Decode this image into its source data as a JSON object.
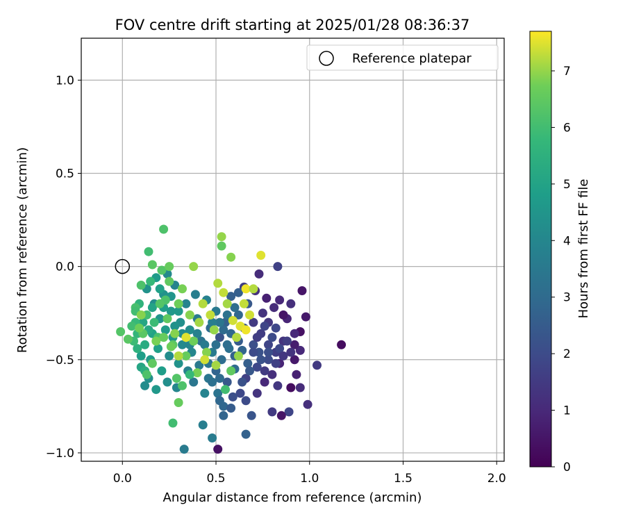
{
  "chart_data": {
    "type": "scatter",
    "title": "FOV centre drift starting at 2025/01/28 08:36:37",
    "xlabel": "Angular distance from reference (arcmin)",
    "ylabel": "Rotation from reference (arcmin)",
    "xlim": [
      -0.22,
      2.04
    ],
    "ylim": [
      -1.045,
      1.225
    ],
    "xticks": [
      {
        "value": 0.0,
        "label": "0.0"
      },
      {
        "value": 0.5,
        "label": "0.5"
      },
      {
        "value": 1.0,
        "label": "1.0"
      },
      {
        "value": 1.5,
        "label": "1.5"
      },
      {
        "value": 2.0,
        "label": "2.0"
      }
    ],
    "yticks": [
      {
        "value": -1.0,
        "label": "−1.0"
      },
      {
        "value": -0.5,
        "label": "−0.5"
      },
      {
        "value": 0.0,
        "label": "0.0"
      },
      {
        "value": 0.5,
        "label": "0.5"
      },
      {
        "value": 1.0,
        "label": "1.0"
      }
    ],
    "grid": true,
    "legend": {
      "position": "top-right",
      "entries": [
        "Reference platepar"
      ]
    },
    "colorbar": {
      "label": "Hours from first FF file",
      "colormap": "viridis",
      "range": [
        0,
        7.7
      ],
      "ticks": [
        {
          "value": 0,
          "label": "0"
        },
        {
          "value": 1,
          "label": "1"
        },
        {
          "value": 2,
          "label": "2"
        },
        {
          "value": 3,
          "label": "3"
        },
        {
          "value": 4,
          "label": "4"
        },
        {
          "value": 5,
          "label": "5"
        },
        {
          "value": 6,
          "label": "6"
        },
        {
          "value": 7,
          "label": "7"
        }
      ]
    },
    "reference_point": {
      "x": 0.0,
      "y": 0.0,
      "label": "Reference platepar"
    },
    "points": [
      [
        1.17,
        -0.42,
        0.3
      ],
      [
        1.04,
        -0.53,
        1.5
      ],
      [
        0.99,
        -0.74,
        1.2
      ],
      [
        0.96,
        -0.13,
        0.5
      ],
      [
        0.98,
        -0.27,
        0.6
      ],
      [
        0.95,
        -0.35,
        0.4
      ],
      [
        0.93,
        -0.58,
        0.8
      ],
      [
        0.95,
        -0.45,
        1.0
      ],
      [
        0.95,
        -0.65,
        1.1
      ],
      [
        0.88,
        -0.28,
        0.9
      ],
      [
        0.9,
        -0.2,
        1.2
      ],
      [
        0.92,
        -0.42,
        0.7
      ],
      [
        0.92,
        -0.5,
        0.6
      ],
      [
        0.9,
        -0.65,
        0.3
      ],
      [
        0.89,
        -0.78,
        1.8
      ],
      [
        0.86,
        -0.26,
        0.5
      ],
      [
        0.86,
        -0.4,
        1.3
      ],
      [
        0.84,
        -0.52,
        0.9
      ],
      [
        0.84,
        -0.18,
        1.0
      ],
      [
        0.83,
        0.0,
        1.7
      ],
      [
        0.83,
        -0.64,
        1.4
      ],
      [
        0.85,
        -0.8,
        0.5
      ],
      [
        0.82,
        -0.33,
        1.9
      ],
      [
        0.82,
        -0.46,
        1.6
      ],
      [
        0.81,
        -0.22,
        1.1
      ],
      [
        0.8,
        -0.58,
        1.2
      ],
      [
        0.8,
        -0.78,
        1.5
      ],
      [
        0.78,
        -0.3,
        1.4
      ],
      [
        0.78,
        -0.42,
        1.8
      ],
      [
        0.78,
        -0.5,
        2.0
      ],
      [
        0.77,
        -0.17,
        0.8
      ],
      [
        0.76,
        -0.62,
        1.0
      ],
      [
        0.75,
        -0.25,
        1.3
      ],
      [
        0.74,
        -0.36,
        1.6
      ],
      [
        0.73,
        -0.46,
        2.2
      ],
      [
        0.72,
        -0.68,
        1.3
      ],
      [
        0.73,
        -0.04,
        1.1
      ],
      [
        0.71,
        -0.13,
        1.2
      ],
      [
        0.72,
        -0.54,
        1.9
      ],
      [
        0.7,
        -0.3,
        1.5
      ],
      [
        0.7,
        -0.42,
        2.1
      ],
      [
        0.69,
        -0.8,
        2.3
      ],
      [
        0.67,
        -0.2,
        2.4
      ],
      [
        0.67,
        -0.52,
        2.6
      ],
      [
        0.66,
        -0.6,
        1.7
      ],
      [
        0.65,
        -0.11,
        1.6
      ],
      [
        0.65,
        -0.33,
        2.3
      ],
      [
        0.64,
        -0.45,
        2.8
      ],
      [
        0.63,
        -0.68,
        1.9
      ],
      [
        0.66,
        -0.9,
        2.7
      ],
      [
        0.62,
        -0.26,
        2.9
      ],
      [
        0.61,
        -0.38,
        2.5
      ],
      [
        0.6,
        -0.55,
        3.0
      ],
      [
        0.59,
        -0.7,
        2.1
      ],
      [
        0.58,
        -0.16,
        2.6
      ],
      [
        0.57,
        -0.44,
        3.2
      ],
      [
        0.56,
        -0.62,
        2.4
      ],
      [
        0.55,
        -0.3,
        2.7
      ],
      [
        0.54,
        -0.75,
        2.9
      ],
      [
        0.53,
        -0.5,
        3.1
      ],
      [
        0.52,
        -0.38,
        2.2
      ],
      [
        0.51,
        -0.68,
        3.3
      ],
      [
        0.5,
        -0.24,
        3.5
      ],
      [
        0.5,
        -0.56,
        2.8
      ],
      [
        0.48,
        -0.46,
        3.6
      ],
      [
        0.47,
        -0.33,
        3.0
      ],
      [
        0.46,
        -0.6,
        3.4
      ],
      [
        0.45,
        -0.18,
        3.8
      ],
      [
        0.44,
        -0.68,
        3.9
      ],
      [
        0.43,
        -0.85,
        3.7
      ],
      [
        0.42,
        -0.4,
        3.3
      ],
      [
        0.41,
        -0.53,
        3.5
      ],
      [
        0.4,
        -0.28,
        3.6
      ],
      [
        0.39,
        -0.15,
        3.7
      ],
      [
        0.38,
        -0.62,
        3.4
      ],
      [
        0.37,
        -0.46,
        4.0
      ],
      [
        0.36,
        -0.34,
        4.2
      ],
      [
        0.35,
        -0.56,
        3.8
      ],
      [
        0.34,
        -0.2,
        3.9
      ],
      [
        0.33,
        -0.98,
        3.6
      ],
      [
        0.32,
        -0.42,
        4.1
      ],
      [
        0.31,
        -0.3,
        4.3
      ],
      [
        0.3,
        -0.52,
        4.4
      ],
      [
        0.29,
        -0.65,
        4.0
      ],
      [
        0.28,
        -0.1,
        3.9
      ],
      [
        0.27,
        -0.38,
        4.5
      ],
      [
        0.26,
        -0.24,
        4.6
      ],
      [
        0.25,
        -0.48,
        4.2
      ],
      [
        0.24,
        -0.04,
        4.1
      ],
      [
        0.24,
        -0.62,
        4.3
      ],
      [
        0.23,
        -0.34,
        4.7
      ],
      [
        0.22,
        -0.15,
        4.4
      ],
      [
        0.21,
        -0.56,
        4.8
      ],
      [
        0.2,
        -0.28,
        4.5
      ],
      [
        0.19,
        -0.44,
        4.9
      ],
      [
        0.18,
        -0.66,
        4.6
      ],
      [
        0.17,
        -0.2,
        4.2
      ],
      [
        0.16,
        -0.36,
        5.0
      ],
      [
        0.15,
        -0.5,
        4.7
      ],
      [
        0.14,
        -0.6,
        4.3
      ],
      [
        0.13,
        -0.12,
        4.4
      ],
      [
        0.12,
        -0.64,
        4.2
      ],
      [
        0.11,
        -0.3,
        5.1
      ],
      [
        0.1,
        -0.48,
        4.8
      ],
      [
        0.76,
        -0.32,
        1.8
      ],
      [
        0.8,
        -0.38,
        2.0
      ],
      [
        0.84,
        -0.44,
        1.9
      ],
      [
        0.88,
        -0.4,
        1.6
      ],
      [
        0.86,
        -0.48,
        1.4
      ],
      [
        0.82,
        -0.52,
        1.7
      ],
      [
        0.78,
        -0.46,
        2.1
      ],
      [
        0.74,
        -0.5,
        2.2
      ],
      [
        0.7,
        -0.46,
        2.0
      ],
      [
        0.72,
        -0.38,
        1.6
      ],
      [
        0.9,
        -0.46,
        1.3
      ],
      [
        0.92,
        -0.36,
        1.0
      ],
      [
        0.76,
        -0.56,
        1.5
      ],
      [
        0.68,
        -0.56,
        2.4
      ],
      [
        0.6,
        -0.48,
        2.7
      ],
      [
        0.62,
        -0.4,
        2.5
      ],
      [
        0.58,
        -0.36,
        2.9
      ],
      [
        0.56,
        -0.42,
        3.1
      ],
      [
        0.64,
        -0.62,
        2.2
      ],
      [
        0.66,
        -0.72,
        2.0
      ],
      [
        0.58,
        -0.76,
        2.5
      ],
      [
        0.52,
        -0.6,
        3.0
      ],
      [
        0.48,
        -0.62,
        3.2
      ],
      [
        0.52,
        -0.72,
        2.9
      ],
      [
        0.48,
        -0.92,
        3.6
      ],
      [
        0.54,
        -0.8,
        2.8
      ],
      [
        0.46,
        -0.52,
        3.4
      ],
      [
        0.44,
        -0.42,
        3.6
      ],
      [
        0.5,
        -0.42,
        3.2
      ],
      [
        0.54,
        -0.34,
        3.0
      ],
      [
        0.56,
        -0.26,
        3.3
      ],
      [
        0.6,
        -0.22,
        3.1
      ],
      [
        0.62,
        -0.14,
        2.6
      ],
      [
        0.52,
        -0.3,
        3.4
      ],
      [
        0.51,
        -0.98,
        0.4
      ],
      [
        0.48,
        -0.3,
        3.7
      ],
      [
        0.4,
        -0.36,
        3.8
      ],
      [
        0.36,
        -0.42,
        4.0
      ],
      [
        0.32,
        -0.36,
        4.2
      ],
      [
        0.28,
        -0.32,
        4.4
      ],
      [
        0.3,
        -0.24,
        4.6
      ],
      [
        0.26,
        -0.16,
        4.5
      ],
      [
        0.22,
        -0.22,
        4.8
      ],
      [
        0.2,
        -0.12,
        4.9
      ],
      [
        0.18,
        -0.06,
        4.7
      ],
      [
        0.16,
        -0.22,
        5.0
      ],
      [
        0.14,
        -0.34,
        5.2
      ],
      [
        0.12,
        -0.42,
        5.3
      ],
      [
        0.1,
        -0.54,
        5.1
      ],
      [
        0.12,
        -0.56,
        5.4
      ],
      [
        0.08,
        -0.44,
        5.5
      ],
      [
        0.09,
        -0.2,
        5.6
      ],
      [
        0.07,
        -0.3,
        5.8
      ],
      [
        0.08,
        -0.36,
        5.7
      ],
      [
        0.06,
        -0.4,
        5.9
      ],
      [
        0.05,
        -0.32,
        6.0
      ],
      [
        0.03,
        -0.39,
        6.4
      ],
      [
        -0.01,
        -0.35,
        6.3
      ],
      [
        0.07,
        -0.22,
        6.1
      ],
      [
        0.1,
        -0.1,
        6.2
      ],
      [
        0.13,
        -0.26,
        6.0
      ],
      [
        0.15,
        -0.08,
        5.8
      ],
      [
        0.17,
        -0.3,
        5.9
      ],
      [
        0.19,
        -0.38,
        6.1
      ],
      [
        0.21,
        -0.02,
        6.3
      ],
      [
        0.23,
        -0.18,
        6.2
      ],
      [
        0.14,
        0.08,
        6.0
      ],
      [
        0.16,
        0.01,
        6.4
      ],
      [
        0.22,
        0.2,
        6.2
      ],
      [
        0.25,
        -0.08,
        6.5
      ],
      [
        0.27,
        -0.42,
        6.4
      ],
      [
        0.29,
        -0.6,
        6.3
      ],
      [
        0.3,
        -0.73,
        6.6
      ],
      [
        0.27,
        -0.84,
        6.0
      ],
      [
        0.25,
        0.0,
        6.6
      ],
      [
        0.3,
        -0.2,
        6.7
      ],
      [
        0.32,
        -0.12,
        6.8
      ],
      [
        0.34,
        -0.48,
        6.6
      ],
      [
        0.36,
        -0.26,
        6.9
      ],
      [
        0.38,
        -0.4,
        6.7
      ],
      [
        0.38,
        0.0,
        7.0
      ],
      [
        0.41,
        -0.3,
        7.1
      ],
      [
        0.43,
        -0.2,
        7.2
      ],
      [
        0.45,
        -0.46,
        6.9
      ],
      [
        0.47,
        -0.26,
        7.3
      ],
      [
        0.49,
        -0.34,
        7.0
      ],
      [
        0.51,
        -0.09,
        7.2
      ],
      [
        0.53,
        0.16,
        7.0
      ],
      [
        0.53,
        0.11,
        6.5
      ],
      [
        0.58,
        0.05,
        6.9
      ],
      [
        0.54,
        -0.14,
        7.3
      ],
      [
        0.56,
        -0.2,
        7.1
      ],
      [
        0.59,
        -0.29,
        7.4
      ],
      [
        0.61,
        -0.38,
        7.2
      ],
      [
        0.63,
        -0.32,
        7.5
      ],
      [
        0.65,
        -0.2,
        7.3
      ],
      [
        0.66,
        -0.12,
        7.6
      ],
      [
        0.68,
        -0.26,
        7.4
      ],
      [
        0.7,
        -0.12,
        7.2
      ],
      [
        0.74,
        0.06,
        7.5
      ],
      [
        0.66,
        -0.34,
        7.6
      ],
      [
        0.58,
        -0.56,
        6.5
      ],
      [
        0.55,
        -0.66,
        6.0
      ],
      [
        0.62,
        -0.48,
        7.0
      ],
      [
        0.5,
        -0.53,
        7.1
      ],
      [
        0.44,
        -0.5,
        7.4
      ],
      [
        0.4,
        -0.57,
        6.8
      ],
      [
        0.34,
        -0.38,
        7.5
      ],
      [
        0.36,
        -0.58,
        5.8
      ],
      [
        0.32,
        -0.64,
        6.2
      ],
      [
        0.3,
        -0.48,
        7.2
      ],
      [
        0.28,
        -0.36,
        6.9
      ],
      [
        0.26,
        -0.43,
        6.7
      ],
      [
        0.24,
        -0.28,
        6.5
      ],
      [
        0.22,
        -0.38,
        6.6
      ],
      [
        0.2,
        -0.2,
        6.3
      ],
      [
        0.18,
        -0.4,
        6.8
      ],
      [
        0.16,
        -0.52,
        6.5
      ],
      [
        0.13,
        -0.58,
        6.2
      ],
      [
        0.11,
        -0.36,
        6.4
      ],
      [
        0.09,
        -0.33,
        6.7
      ],
      [
        0.07,
        -0.24,
        6.0
      ],
      [
        0.1,
        -0.26,
        6.9
      ]
    ]
  }
}
